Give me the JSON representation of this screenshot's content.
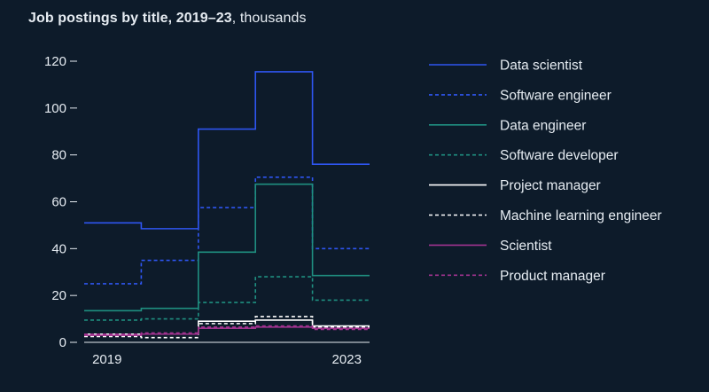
{
  "title": {
    "main": "Job postings by title, 2019–23",
    "unit": ", thousands"
  },
  "chart_data": {
    "type": "line",
    "step": true,
    "title": "Job postings by title, 2019–23, thousands",
    "xlabel": "",
    "ylabel": "",
    "x": [
      2019,
      2020,
      2021,
      2022,
      2023
    ],
    "x_tick_labels": [
      "2019",
      "2023"
    ],
    "y_ticks": [
      0,
      20,
      40,
      60,
      80,
      100,
      120
    ],
    "ylim": [
      0,
      120
    ],
    "legend_position": "right",
    "series": [
      {
        "name": "Data scientist",
        "values": [
          51,
          48.5,
          91,
          115.5,
          76
        ],
        "color": "#2e55f0",
        "dash": false
      },
      {
        "name": "Software engineer",
        "values": [
          25,
          35,
          57.5,
          70.5,
          40
        ],
        "color": "#2e55f0",
        "dash": true
      },
      {
        "name": "Data engineer",
        "values": [
          13.5,
          14.5,
          38.5,
          67.5,
          28.5
        ],
        "color": "#1f8f80",
        "dash": false
      },
      {
        "name": "Software developer",
        "values": [
          9.5,
          10,
          17,
          28,
          18
        ],
        "color": "#1f8f80",
        "dash": true
      },
      {
        "name": "Project manager",
        "values": [
          3.5,
          3.5,
          9,
          9.5,
          7
        ],
        "color": "#ffffff",
        "dash": false
      },
      {
        "name": "Machine learning engineer",
        "values": [
          2.5,
          2,
          8,
          11,
          6.5
        ],
        "color": "#ffffff",
        "dash": true
      },
      {
        "name": "Scientist",
        "values": [
          3,
          3.5,
          6,
          6.5,
          6
        ],
        "color": "#a1338f",
        "dash": false
      },
      {
        "name": "Product manager",
        "values": [
          3.5,
          4,
          6.5,
          7,
          5.5
        ],
        "color": "#a1338f",
        "dash": true
      }
    ]
  }
}
